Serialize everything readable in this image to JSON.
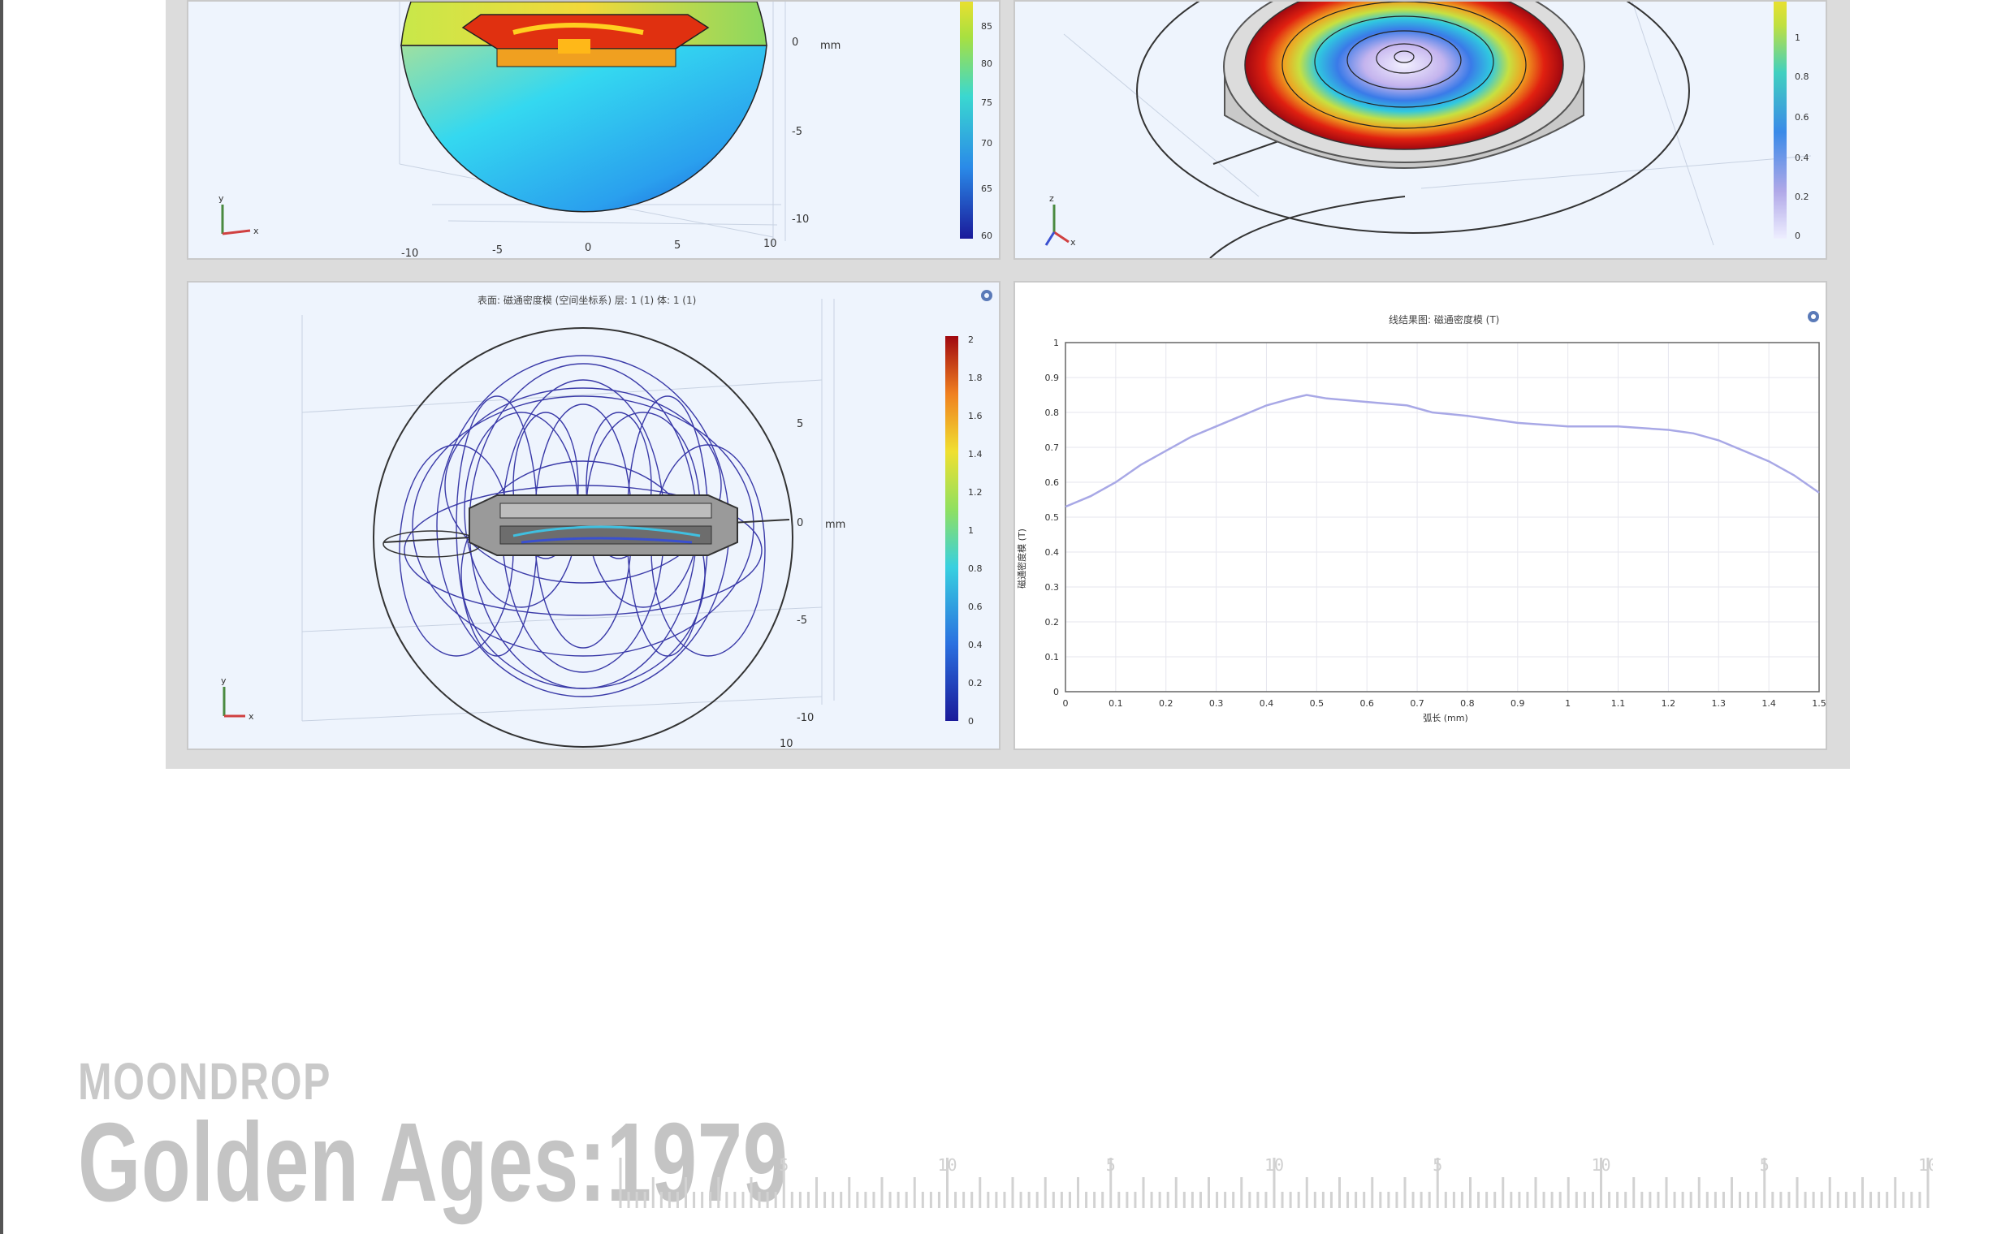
{
  "colors": {
    "frame": "#dcdcdc",
    "panel_bg": "#eef4fd",
    "field_line": "#3a3aa8",
    "curve": "#a8a8e6",
    "footer_gray": "#c6c6c6"
  },
  "panel_top_left": {
    "axis_unit": "mm",
    "ticks_vertical": [
      "0",
      "-5",
      "-10"
    ],
    "ticks_horizontal": [
      "-10",
      "-5",
      "0",
      "5",
      "10"
    ],
    "colorbar_ticks": [
      "85",
      "80",
      "75",
      "70",
      "65",
      "60"
    ],
    "triad_labels": [
      "y",
      "x"
    ]
  },
  "panel_top_right": {
    "colorbar_ticks": [
      "1",
      "0.8",
      "0.6",
      "0.4",
      "0.2",
      "0"
    ],
    "triad_labels": [
      "z",
      "x"
    ]
  },
  "panel_bottom_left": {
    "title": "表面: 磁通密度模 (空间坐标系)  层: 1 (1)  体: 1 (1)",
    "axis_unit": "mm",
    "ticks_vertical": [
      "5",
      "0",
      "-5",
      "-10"
    ],
    "tick_horizontal_end": "10",
    "colorbar_ticks": [
      "2",
      "1.8",
      "1.6",
      "1.4",
      "1.2",
      "1",
      "0.8",
      "0.6",
      "0.4",
      "0.2",
      "0"
    ],
    "triad_labels": [
      "y",
      "x"
    ]
  },
  "chart_data": {
    "type": "line",
    "title": "线结果图: 磁通密度模 (T)",
    "xlabel": "弧长 (mm)",
    "ylabel": "磁通密度模 (T)",
    "xlim": [
      0,
      1.5
    ],
    "ylim": [
      0,
      1
    ],
    "x_ticks": [
      "0",
      "0.1",
      "0.2",
      "0.3",
      "0.4",
      "0.5",
      "0.6",
      "0.7",
      "0.8",
      "0.9",
      "1",
      "1.1",
      "1.2",
      "1.3",
      "1.4",
      "1.5"
    ],
    "y_ticks": [
      "0",
      "0.1",
      "0.2",
      "0.3",
      "0.4",
      "0.5",
      "0.6",
      "0.7",
      "0.8",
      "0.9",
      "1"
    ],
    "series": [
      {
        "x": [
          0,
          0.05,
          0.1,
          0.15,
          0.2,
          0.25,
          0.3,
          0.35,
          0.4,
          0.45,
          0.48,
          0.52,
          0.6,
          0.68,
          0.73,
          0.8,
          0.9,
          1.0,
          1.1,
          1.2,
          1.25,
          1.3,
          1.4,
          1.45,
          1.5
        ],
        "y": [
          0.53,
          0.56,
          0.6,
          0.65,
          0.69,
          0.73,
          0.76,
          0.79,
          0.82,
          0.84,
          0.85,
          0.84,
          0.83,
          0.82,
          0.8,
          0.79,
          0.77,
          0.76,
          0.76,
          0.75,
          0.74,
          0.72,
          0.66,
          0.62,
          0.57
        ]
      }
    ]
  },
  "footer": {
    "brand": "MOONDROP",
    "title": "Golden Ages:1979",
    "ruler_labels": [
      "5",
      "10",
      "5",
      "10",
      "5",
      "10",
      "5",
      "10"
    ]
  }
}
